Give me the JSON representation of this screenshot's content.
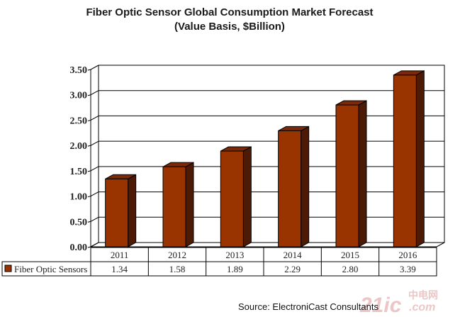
{
  "chart_data": {
    "type": "bar",
    "title": "Fiber Optic Sensor Global Consumption Market Forecast",
    "subtitle": "(Value Basis, $Billion)",
    "xlabel": "",
    "ylabel": "",
    "categories": [
      "2011",
      "2012",
      "2013",
      "2014",
      "2015",
      "2016"
    ],
    "series": [
      {
        "name": "Fiber Optic Sensors",
        "values": [
          1.34,
          1.58,
          1.89,
          2.29,
          2.8,
          3.39
        ],
        "color": "#993300",
        "side_color": "#4d1a06",
        "top_color": "#7a2a0a"
      }
    ],
    "ylim": [
      0,
      3.5
    ],
    "yticks": [
      "0.00",
      "0.50",
      "1.00",
      "1.50",
      "2.00",
      "2.50",
      "3.00",
      "3.50"
    ],
    "grid": true,
    "style": "3d-column",
    "data_table": {
      "row_label": "Fiber Optic Sensors",
      "values": [
        "1.34",
        "1.58",
        "1.89",
        "2.29",
        "2.80",
        "3.39"
      ]
    },
    "source": "Source: ElectroniCast  Consultants",
    "watermark": {
      "main": "21ic",
      "cn": "中电网",
      "sub": ".com"
    }
  }
}
